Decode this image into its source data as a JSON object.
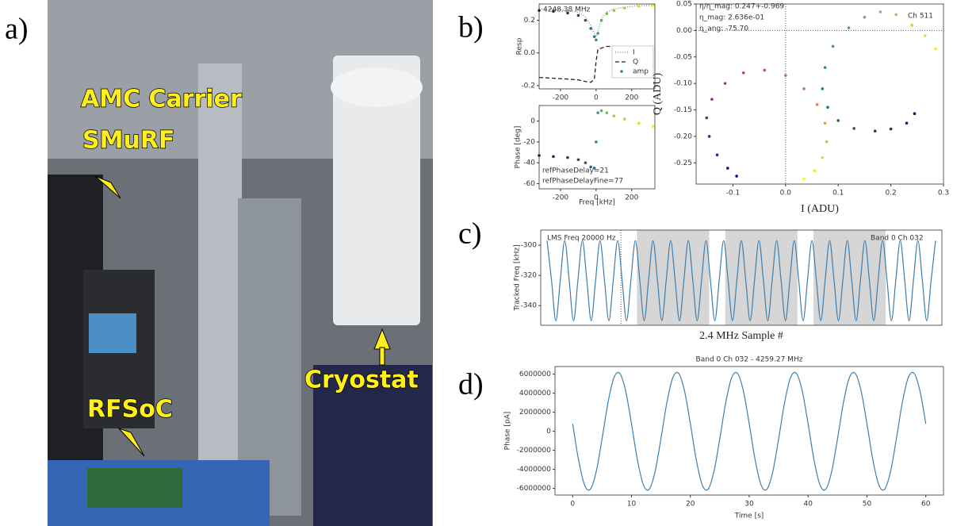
{
  "panel_labels": [
    "a)",
    "b)",
    "c)",
    "d)"
  ],
  "photo": {
    "labels": [
      "AMC Carrier",
      "SMuRF",
      "RFSoC",
      "Cryostat"
    ]
  },
  "chart_data": [
    {
      "type": "line",
      "ylabel": "Resp",
      "annotations": [
        "4248.38 MHz"
      ],
      "x": [
        -320,
        -240,
        -160,
        -100,
        -60,
        -30,
        -10,
        0,
        10,
        30,
        60,
        100,
        160,
        240,
        320
      ],
      "xlim": [
        -320,
        330
      ],
      "xticks": [
        -200,
        0,
        200
      ],
      "ylim": [
        -0.22,
        0.3
      ],
      "yticks": [
        -0.2,
        {
          "value": 0,
          "label": "0.0"
        },
        0.2
      ],
      "legend": "lower right",
      "series": [
        {
          "name": "I",
          "style": "dotted",
          "color": "#888888",
          "values": [
            0.27,
            0.27,
            0.26,
            0.25,
            0.22,
            0.17,
            0.12,
            0.1,
            0.13,
            0.21,
            0.25,
            0.27,
            0.28,
            0.29,
            0.29
          ]
        },
        {
          "name": "Q",
          "style": "dashed",
          "color": "#222222",
          "values": [
            -0.15,
            -0.155,
            -0.16,
            -0.165,
            -0.175,
            -0.18,
            -0.16,
            -0.05,
            0.02,
            0.03,
            0.04,
            0.04,
            0.04,
            0.04,
            0.04
          ]
        },
        {
          "name": "amp",
          "style": "markers",
          "colors": [
            "#440154",
            "#21918c",
            "#fde725"
          ],
          "values": [
            0.26,
            0.255,
            0.245,
            0.23,
            0.2,
            0.15,
            0.1,
            0.08,
            0.12,
            0.2,
            0.24,
            0.26,
            0.275,
            0.285,
            0.29
          ]
        }
      ]
    },
    {
      "type": "scatter",
      "xlabel": "Freq [kHz]",
      "ylabel": "Phase [deg]",
      "annotations": [
        "refPhaseDelay=21",
        "refPhaseDelayFine=77"
      ],
      "x": [
        -320,
        -240,
        -160,
        -100,
        -60,
        -30,
        -10,
        0,
        10,
        30,
        60,
        100,
        160,
        240,
        320
      ],
      "xlim": [
        -320,
        330
      ],
      "xticks": [
        -200,
        0,
        200
      ],
      "ylim": [
        -65,
        15
      ],
      "yticks": [
        0,
        -20,
        -40,
        -60
      ],
      "series": [
        {
          "style": "markers",
          "colors": [
            "#440154",
            "#21918c",
            "#fde725"
          ],
          "values": [
            -33,
            -34,
            -35,
            -37,
            -40,
            -44,
            -45,
            -20,
            8,
            10,
            8,
            5,
            2,
            -2,
            -5
          ]
        }
      ]
    },
    {
      "type": "scatter",
      "xlabel": "I (ADU)",
      "ylabel": "Q (ADU)",
      "annotations": [
        "η/η_mag: 0.247+-0.969",
        "η_mag: 2.636e-01",
        "η_ang: -75.70",
        "Ch 511"
      ],
      "xlim": [
        -0.17,
        0.3
      ],
      "xticks": [
        -0.1,
        {
          "value": 0,
          "label": "0.0"
        },
        0.1,
        0.2,
        0.3
      ],
      "ylim": [
        -0.29,
        0.05
      ],
      "yticks": [
        0.05,
        {
          "value": 0,
          "label": "0.00"
        },
        -0.05,
        {
          "value": -0.1,
          "label": "-0.10"
        },
        -0.15,
        {
          "value": -0.2,
          "label": "-0.20"
        },
        -0.25
      ],
      "series": [
        {
          "style": "markers",
          "colors": [
            "#0d0887",
            "#cc4778",
            "#f0f921"
          ],
          "x": [
            -0.093,
            -0.11,
            -0.13,
            -0.145,
            -0.15,
            -0.14,
            -0.115,
            -0.08,
            -0.04,
            0.0,
            0.035,
            0.06,
            0.075,
            0.078,
            0.07,
            0.055,
            0.035
          ],
          "values": [
            -0.275,
            -0.26,
            -0.235,
            -0.2,
            -0.165,
            -0.13,
            -0.1,
            -0.08,
            -0.075,
            -0.085,
            -0.11,
            -0.14,
            -0.175,
            -0.21,
            -0.24,
            -0.265,
            -0.28
          ]
        },
        {
          "style": "markers",
          "colors": [
            "#440154",
            "#21918c",
            "#fde725"
          ],
          "x": [
            0.245,
            0.23,
            0.2,
            0.17,
            0.13,
            0.1,
            0.08,
            0.07,
            0.075,
            0.09,
            0.12,
            0.15,
            0.18,
            0.21,
            0.24,
            0.265,
            0.285
          ],
          "values": [
            -0.157,
            -0.175,
            -0.186,
            -0.19,
            -0.185,
            -0.17,
            -0.145,
            -0.11,
            -0.07,
            -0.03,
            0.005,
            0.025,
            0.035,
            0.03,
            0.01,
            -0.01,
            -0.035
          ]
        }
      ]
    },
    {
      "type": "line",
      "xlabel": "2.4 MHz Sample #",
      "ylabel": "Tracked Freq [kHz]",
      "annotations": [
        "LMS Freq 20000 Hz",
        "Band 0 Ch 032"
      ],
      "ylim": [
        -353,
        -290
      ],
      "yticks": [
        -300,
        -320,
        -340
      ],
      "series": [
        {
          "style": "smooth",
          "color": "#3b7fb0",
          "values": [
            -297,
            -323,
            -350,
            -323,
            -297,
            -323,
            -350,
            -323,
            -297,
            -323,
            -350,
            -323,
            -297,
            -323,
            -350,
            -323,
            -297,
            -323,
            -350,
            -323,
            -297,
            -323,
            -350,
            -323,
            -297,
            -323,
            -350,
            -323,
            -297,
            -323,
            -350,
            -323,
            -297,
            -323,
            -350,
            -323,
            -297,
            -323,
            -350,
            -323,
            -297,
            -323,
            -350,
            -323,
            -297,
            -323,
            -350,
            -323,
            -297,
            -323,
            -350,
            -323,
            -297,
            -323,
            -350,
            -323,
            -297,
            -323,
            -350,
            -323,
            -297,
            -323,
            -350,
            -323,
            -297,
            -323,
            -350,
            -323,
            -297,
            -323,
            -350,
            -323,
            -297,
            -323,
            -350,
            -323,
            -297,
            -323,
            -350,
            -323,
            -297,
            -323,
            -350,
            -323,
            -297,
            -323,
            -350,
            -323,
            -297
          ]
        }
      ]
    },
    {
      "type": "line",
      "title": "Band 0 Ch 032 - 4259.27 MHz",
      "xlabel": "Time [s]",
      "ylabel": "Phase [pA]",
      "x": [
        0,
        1,
        2,
        3,
        4,
        5,
        6,
        7,
        8,
        9,
        10,
        11,
        12,
        13,
        14,
        15,
        16,
        17,
        18,
        19,
        20,
        21,
        22,
        23,
        24,
        25,
        26,
        27,
        28,
        29,
        30,
        31,
        32,
        33,
        34,
        35,
        36,
        37,
        38,
        39,
        40,
        41,
        42,
        43,
        44,
        45,
        46,
        47,
        48,
        49,
        50,
        51,
        52,
        53,
        54,
        55,
        56,
        57,
        58,
        59,
        60
      ],
      "xlim": [
        -3,
        63
      ],
      "xticks": [
        0,
        10,
        20,
        30,
        40,
        50,
        60
      ],
      "ylim": [
        -6700000,
        6800000
      ],
      "yticks": [
        6000000,
        4000000,
        2000000,
        0,
        -2000000,
        -4000000,
        -6000000
      ],
      "series": [
        {
          "style": "smooth",
          "color": "#3b7fb0",
          "values": [
            777000,
            -2987000,
            -5610000,
            -6090000,
            -4244000,
            -777000,
            2987000,
            5610000,
            6090000,
            4244000,
            777000,
            -2987000,
            -5610000,
            -6090000,
            -4244000,
            -777000,
            2987000,
            5610000,
            6090000,
            4244000,
            777000,
            -2987000,
            -5610000,
            -6090000,
            -4244000,
            -777000,
            2987000,
            5610000,
            6090000,
            4244000,
            777000,
            -2987000,
            -5610000,
            -6090000,
            -4244000,
            -777000,
            2987000,
            5610000,
            6090000,
            4244000,
            777000,
            -2987000,
            -5610000,
            -6090000,
            -4244000,
            -777000,
            2987000,
            5610000,
            6090000,
            4244000,
            777000,
            -2987000,
            -5610000,
            -6090000,
            -4244000,
            -777000,
            2987000,
            5610000,
            6090000,
            4244000,
            777000
          ]
        }
      ]
    }
  ]
}
